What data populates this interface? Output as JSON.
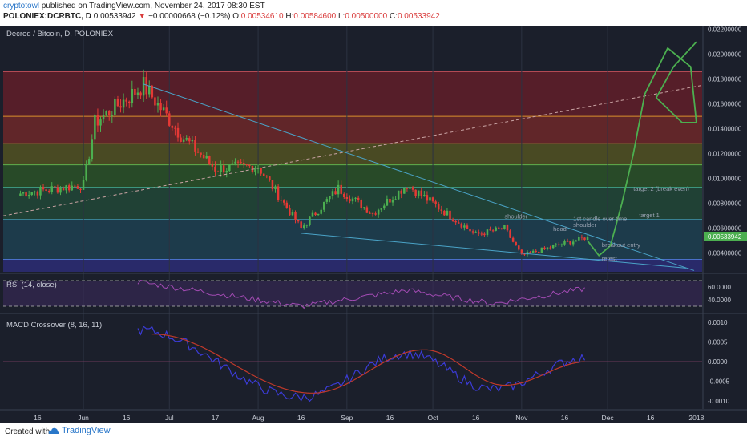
{
  "header": {
    "author": "cryptotowl",
    "published_text": "published on TradingView.com, November 24, 2017 08:30 EST",
    "symbol_line": "POLONIEX:DCRBTC, D",
    "last": "0.00533942",
    "change": "−0.00000668 (−0.12%)",
    "o_label": "O:",
    "o": "0.00534610",
    "h_label": "H:",
    "h": "0.00584600",
    "l_label": "L:",
    "l": "0.00500000",
    "c_label": "C:",
    "c": "0.00533942"
  },
  "footer": {
    "created_with": "Created with",
    "brand": "TradingView"
  },
  "colors": {
    "background": "#1b1f2b",
    "up": "#4caf50",
    "down": "#e53935",
    "rsi": "#a24bb3",
    "macd_fast": "#3b3bd6",
    "macd_signal": "#c0392b",
    "drawing": "#4caf50",
    "current_price_tag": "#4caf50"
  },
  "chart_data": [
    {
      "type": "candlestick",
      "title": "Decred / Bitcoin, D, POLONIEX",
      "ylim": [
        0.0025,
        0.0223
      ],
      "y_ticks": [
        "0.02200000",
        "0.02000000",
        "0.01800000",
        "0.01600000",
        "0.01400000",
        "0.01200000",
        "0.01000000",
        "0.00800000",
        "0.00600000",
        "0.00400000"
      ],
      "current_price_label": "0.00533942",
      "x_ticks": [
        "16",
        "Jun",
        "16",
        "Jul",
        "17",
        "Aug",
        "16",
        "Sep",
        "16",
        "Oct",
        "16",
        "Nov",
        "16",
        "Dec",
        "16",
        "2018"
      ],
      "series": [
        {
          "name": "DCRBTC",
          "key_points": [
            {
              "date": "May 10",
              "close": 0.0088
            },
            {
              "date": "Jun 1",
              "close": 0.0095
            },
            {
              "date": "Jun 5",
              "close": 0.0145
            },
            {
              "date": "Jun 22",
              "close": 0.0175
            },
            {
              "date": "Jul 5",
              "close": 0.0135
            },
            {
              "date": "Jul 17",
              "close": 0.0108
            },
            {
              "date": "Aug 1",
              "close": 0.011
            },
            {
              "date": "Aug 16",
              "close": 0.006
            },
            {
              "date": "Aug 29",
              "close": 0.0092
            },
            {
              "date": "Sep 10",
              "close": 0.0072
            },
            {
              "date": "Sep 22",
              "close": 0.0095
            },
            {
              "date": "Oct 16",
              "close": 0.0055
            },
            {
              "date": "Oct 26",
              "close": 0.006
            },
            {
              "date": "Nov 1",
              "close": 0.0038
            },
            {
              "date": "Nov 16",
              "close": 0.0048
            },
            {
              "date": "Nov 24",
              "close": 0.0053
            }
          ]
        }
      ],
      "fib_levels": [
        0.0186,
        0.015,
        0.0128,
        0.0111,
        0.0093,
        0.0067,
        0.0035
      ],
      "annotations": [
        "target 2 (break even)",
        "target 1",
        "1st candle over time",
        "shoulder",
        "shoulder",
        "head",
        "breakout entry",
        "retest"
      ]
    },
    {
      "type": "line",
      "title": "RSI (14, close)",
      "ylim": [
        20,
        80
      ],
      "y_ticks": [
        "60.0000",
        "40.0000"
      ],
      "bands": [
        30,
        70
      ],
      "series": [
        {
          "name": "RSI",
          "key_points": [
            {
              "date": "Jun 20",
              "value": 68
            },
            {
              "date": "Aug 16",
              "value": 30
            },
            {
              "date": "Sep 22",
              "value": 55
            },
            {
              "date": "Oct 22",
              "value": 34
            },
            {
              "date": "Nov 24",
              "value": 58
            }
          ]
        }
      ]
    },
    {
      "type": "line",
      "title": "MACD Crossover (8, 16, 11)",
      "ylim": [
        -0.0012,
        0.0012
      ],
      "y_ticks": [
        "0.0010",
        "0.0005",
        "0.0000",
        "-0.0005",
        "-0.0010"
      ],
      "series": [
        {
          "name": "MACD",
          "key_points": [
            {
              "date": "Jun 20",
              "value": 0.0008
            },
            {
              "date": "Aug 16",
              "value": -0.0009
            },
            {
              "date": "Sep 22",
              "value": 0.0002
            },
            {
              "date": "Oct 22",
              "value": -0.0007
            },
            {
              "date": "Nov 24",
              "value": 0.0001
            }
          ]
        },
        {
          "name": "Signal",
          "key_points": [
            {
              "date": "Jun 25",
              "value": 0.0007
            },
            {
              "date": "Aug 20",
              "value": -0.0008
            },
            {
              "date": "Sep 28",
              "value": 0.0003
            },
            {
              "date": "Oct 26",
              "value": -0.0006
            },
            {
              "date": "Nov 24",
              "value": 0.0
            }
          ]
        }
      ]
    }
  ]
}
